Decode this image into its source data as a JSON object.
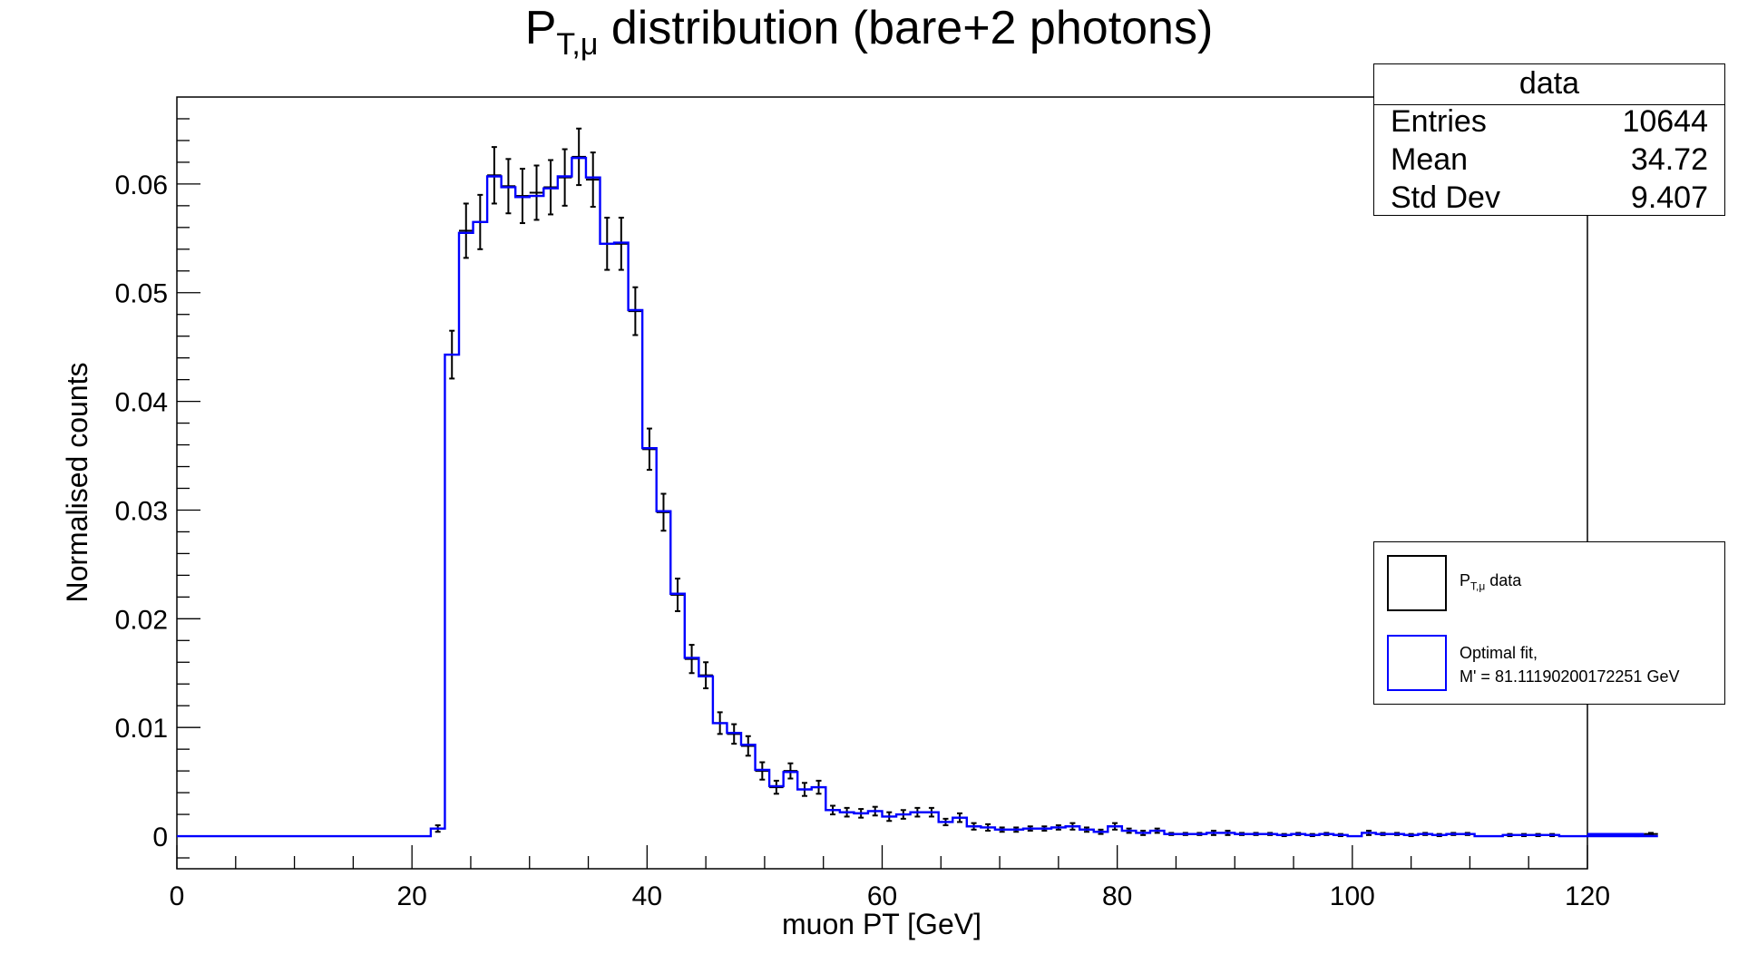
{
  "title": {
    "main": "P",
    "sub": "T,μ",
    "rest": " distribution (bare+2 photons)"
  },
  "chart_data": {
    "type": "histogram",
    "title": "P_{T,μ} distribution (bare+2 photons)",
    "xlabel": "muon PT [GeV]",
    "ylabel": "Normalised counts",
    "xlim": [
      0,
      120
    ],
    "ylim": [
      -0.003,
      0.068
    ],
    "xticks": [
      "0",
      "20",
      "40",
      "60",
      "80",
      "100",
      "120"
    ],
    "yticks": [
      "0",
      "0.01",
      "0.02",
      "0.03",
      "0.04",
      "0.05",
      "0.06"
    ],
    "bin_width": 1.2,
    "bin_start": 0,
    "series": [
      {
        "name": "P_{T,μ} data",
        "color": "#000000",
        "style": "points-with-error-bars",
        "values": [
          0,
          0,
          0,
          0,
          0,
          0,
          0,
          0,
          0,
          0,
          0,
          0,
          0,
          0,
          0,
          0,
          0,
          0,
          0.0007,
          0.0443,
          0.0557,
          0.0565,
          0.0608,
          0.0598,
          0.0589,
          0.0592,
          0.0597,
          0.0606,
          0.0625,
          0.0604,
          0.0545,
          0.0545,
          0.0483,
          0.0356,
          0.0298,
          0.0222,
          0.0163,
          0.0148,
          0.0104,
          0.0094,
          0.0083,
          0.006,
          0.0045,
          0.006,
          0.0043,
          0.0045,
          0.0024,
          0.0022,
          0.0021,
          0.0023,
          0.0018,
          0.002,
          0.0022,
          0.0022,
          0.0013,
          0.0017,
          0.0009,
          0.0008,
          0.0006,
          0.0006,
          0.0007,
          0.0007,
          0.0008,
          0.0009,
          0.0006,
          0.0004,
          0.0009,
          0.0005,
          0.0003,
          0.0005,
          0.0002,
          0.0002,
          0.0002,
          0.0003,
          0.0003,
          0.0002,
          0.0002,
          0.0002,
          0.0001,
          0.0002,
          0.0001,
          0.0002,
          0.0001,
          0.0,
          0.0003,
          0.0002,
          0.0002,
          0.0001,
          0.0002,
          0.0001,
          0.0002,
          0.0002,
          0.0,
          0,
          0.0001,
          0.0001,
          0.0001,
          0.0001,
          0,
          0.0,
          0,
          0.0,
          0,
          0.0001,
          0.0002,
          0.0
        ],
        "errors": [
          0,
          0,
          0,
          0,
          0,
          0,
          0,
          0,
          0,
          0,
          0,
          0,
          0,
          0,
          0,
          0,
          0,
          0,
          0.0003,
          0.0022,
          0.0025,
          0.0025,
          0.0026,
          0.0025,
          0.0025,
          0.0025,
          0.0025,
          0.0026,
          0.0026,
          0.0025,
          0.0024,
          0.0024,
          0.0022,
          0.0019,
          0.0017,
          0.0015,
          0.0013,
          0.0012,
          0.001,
          0.0009,
          0.0009,
          0.0008,
          0.0006,
          0.0007,
          0.0006,
          0.0006,
          0.0004,
          0.0004,
          0.0004,
          0.0004,
          0.0004,
          0.0004,
          0.0004,
          0.0004,
          0.0003,
          0.0004,
          0.0003,
          0.0003,
          0.0002,
          0.0002,
          0.0002,
          0.0002,
          0.0002,
          0.0003,
          0.0002,
          0.0002,
          0.0003,
          0.0002,
          0.0002,
          0.0002,
          0.0001,
          0.0001,
          0.0001,
          0.0002,
          0.0002,
          0.0001,
          0.0001,
          0.0001,
          0.0001,
          0.0001,
          0.0001,
          0.0001,
          0.0001,
          0,
          0.0002,
          0.0001,
          0.0001,
          0.0001,
          0.0001,
          0.0001,
          0.0001,
          0.0001,
          0,
          0,
          0.0001,
          0.0001,
          0.0001,
          0.0001,
          0,
          0,
          0,
          0,
          0,
          0.0001,
          0.0001,
          0
        ]
      },
      {
        "name": "Optimal fit, M' = 81.11190200172251 GeV",
        "color": "#0000ff",
        "style": "step",
        "values": [
          0,
          0,
          0,
          0,
          0,
          0,
          0,
          0,
          0,
          0,
          0,
          0,
          0,
          0,
          0,
          0,
          0,
          0,
          0.0007,
          0.0443,
          0.0555,
          0.0565,
          0.0607,
          0.0597,
          0.0588,
          0.0589,
          0.0596,
          0.0607,
          0.0624,
          0.0606,
          0.0545,
          0.0546,
          0.0484,
          0.0357,
          0.0299,
          0.0223,
          0.0164,
          0.0147,
          0.0104,
          0.0095,
          0.0084,
          0.0061,
          0.0046,
          0.0059,
          0.0043,
          0.0045,
          0.0024,
          0.0022,
          0.0021,
          0.0023,
          0.0018,
          0.002,
          0.0022,
          0.0022,
          0.0013,
          0.0017,
          0.0009,
          0.0008,
          0.0006,
          0.0006,
          0.0007,
          0.0007,
          0.0008,
          0.0009,
          0.0006,
          0.0004,
          0.0009,
          0.0005,
          0.0003,
          0.0005,
          0.0002,
          0.0002,
          0.0002,
          0.0003,
          0.0003,
          0.0002,
          0.0002,
          0.0002,
          0.0001,
          0.0002,
          0.0001,
          0.0002,
          0.0001,
          0.0,
          0.0003,
          0.0002,
          0.0002,
          0.0001,
          0.0002,
          0.0001,
          0.0002,
          0.0002,
          0.0,
          0,
          0.0001,
          0.0001,
          0.0001,
          0.0001,
          0,
          0.0,
          0,
          0.0,
          0,
          0.0001,
          0.0002,
          0.0
        ]
      }
    ]
  },
  "stats": {
    "title": "data",
    "rows": [
      {
        "key": "Entries",
        "value": "10644"
      },
      {
        "key": "Mean",
        "value": "34.72"
      },
      {
        "key": "Std Dev",
        "value": "9.407"
      }
    ]
  },
  "legend": {
    "entry1_main": "P",
    "entry1_sub": "T,μ",
    "entry1_rest": " data",
    "entry2_line1": "Optimal fit,",
    "entry2_line2": "M' = 81.11190200172251 GeV",
    "colors": {
      "data": "#000000",
      "fit": "#0000ff"
    }
  }
}
